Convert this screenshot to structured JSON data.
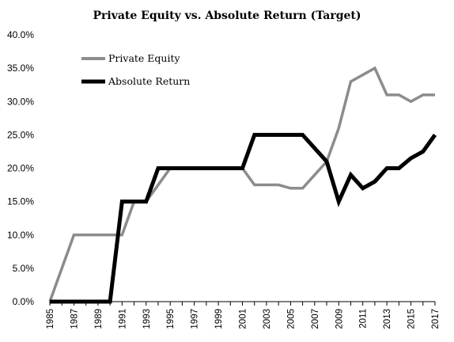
{
  "chart_data": {
    "type": "line",
    "title": "Private Equity vs. Absolute Return (Target)",
    "xlabel": "",
    "ylabel": "",
    "x": [
      1985,
      1986,
      1987,
      1988,
      1989,
      1990,
      1991,
      1992,
      1993,
      1994,
      1995,
      1996,
      1997,
      1998,
      1999,
      2000,
      2001,
      2002,
      2003,
      2004,
      2005,
      2006,
      2007,
      2008,
      2009,
      2010,
      2011,
      2012,
      2013,
      2014,
      2015,
      2016,
      2017
    ],
    "x_tick_labels": [
      "1985",
      "1987",
      "1989",
      "1991",
      "1993",
      "1995",
      "1997",
      "1999",
      "2001",
      "2003",
      "2005",
      "2007",
      "2009",
      "2011",
      "2013",
      "2015",
      "2017"
    ],
    "y_tick_labels": [
      "0.0%",
      "5.0%",
      "10.0%",
      "15.0%",
      "20.0%",
      "25.0%",
      "30.0%",
      "35.0%",
      "40.0%"
    ],
    "ylim": [
      0,
      40
    ],
    "grid": false,
    "legend_position": "top-left",
    "series": [
      {
        "name": "Private Equity",
        "color": "#8c8c8c",
        "values": [
          0,
          5,
          10,
          10,
          10,
          10,
          10,
          15,
          15,
          17.5,
          20,
          20,
          20,
          20,
          20,
          20,
          20,
          17.5,
          17.5,
          17.5,
          17,
          17,
          19,
          21,
          26,
          33,
          34,
          35,
          31,
          31,
          30,
          31,
          31
        ]
      },
      {
        "name": "Absolute Return",
        "color": "#000000",
        "values": [
          0,
          0,
          0,
          0,
          0,
          0,
          15,
          15,
          15,
          20,
          20,
          20,
          20,
          20,
          20,
          20,
          20,
          25,
          25,
          25,
          25,
          25,
          23,
          21,
          15,
          19,
          17,
          18,
          20,
          20,
          21.5,
          22.5,
          25
        ]
      }
    ]
  }
}
